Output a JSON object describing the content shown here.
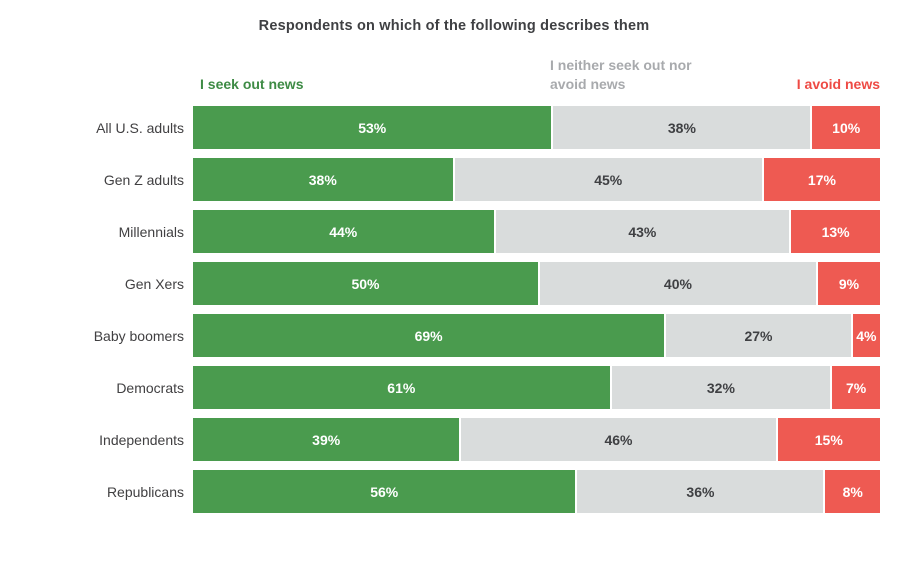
{
  "title": "Respondents on which of the following describes them",
  "legend": {
    "items": [
      {
        "label": "I seek out news",
        "color": "#3e8b45"
      },
      {
        "label": "I neither seek out nor avoid news",
        "color": "#a8aaad"
      },
      {
        "label": "I avoid news",
        "color": "#ee4a44"
      }
    ]
  },
  "chart_data": {
    "type": "bar",
    "stacked": true,
    "orientation": "horizontal",
    "title": "Respondents on which of the following describes them",
    "value_suffix": "%",
    "categories": [
      "All U.S. adults",
      "Gen Z adults",
      "Millennials",
      "Gen Xers",
      "Baby boomers",
      "Democrats",
      "Independents",
      "Republicans"
    ],
    "series": [
      {
        "name": "I seek out news",
        "color": "#4a9b4e",
        "text_color": "#ffffff",
        "values": [
          53,
          38,
          44,
          50,
          69,
          61,
          39,
          56
        ]
      },
      {
        "name": "I neither seek out nor avoid news",
        "color": "#d9dcdc",
        "text_color": "#3f4043",
        "values": [
          38,
          45,
          43,
          40,
          27,
          32,
          46,
          36
        ]
      },
      {
        "name": "I avoid news",
        "color": "#ee5a52",
        "text_color": "#ffffff",
        "values": [
          10,
          17,
          13,
          9,
          4,
          7,
          15,
          8
        ]
      }
    ],
    "legend_position": "top",
    "axis_labels_visible": false,
    "grid": false
  }
}
